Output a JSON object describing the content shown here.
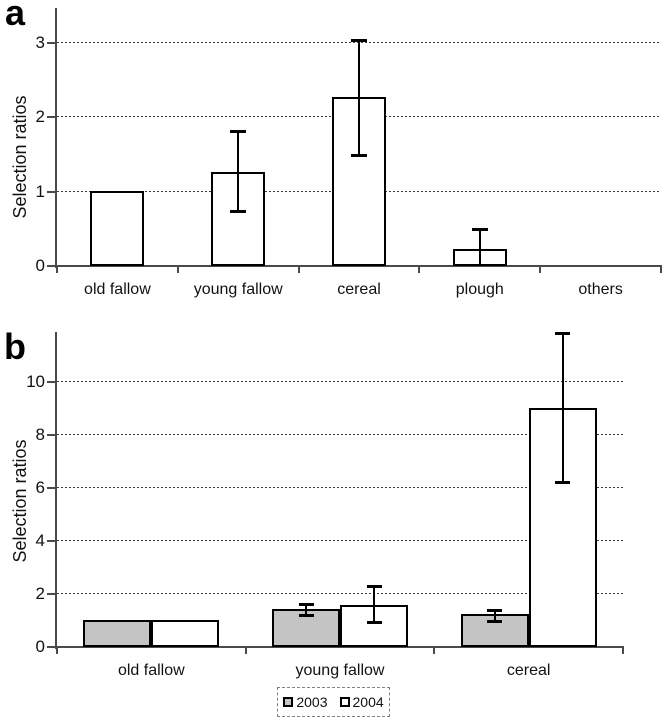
{
  "figure_title": "",
  "chart_data": [
    {
      "id": "a",
      "panel_label": "a",
      "type": "bar",
      "ylabel": "Selection ratios",
      "xlabel": "",
      "ylim": [
        0,
        3.45
      ],
      "yticks": [
        0,
        1,
        2,
        3
      ],
      "grid": "horizontal-dashed",
      "legend_position": "none",
      "categories": [
        "old fallow",
        "young fallow",
        "cereal",
        "plough",
        "others"
      ],
      "series": [
        {
          "name": "selection ratio",
          "fill": "#ffffff",
          "values": [
            1.0,
            1.25,
            2.25,
            0.22,
            0
          ],
          "error_low": [
            null,
            0.73,
            1.48,
            0,
            null
          ],
          "error_high": [
            null,
            1.81,
            3.03,
            0.49,
            null
          ]
        }
      ]
    },
    {
      "id": "b",
      "panel_label": "b",
      "type": "bar",
      "ylabel": "Selection ratios",
      "xlabel": "",
      "ylim": [
        0,
        11.9
      ],
      "yticks": [
        0,
        2,
        4,
        6,
        8,
        10
      ],
      "grid": "horizontal-dashed",
      "legend_position": "bottom",
      "categories": [
        "old fallow",
        "young fallow",
        "cereal"
      ],
      "series": [
        {
          "name": "2003",
          "fill": "#c4c4c4",
          "values": [
            1.0,
            1.38,
            1.2
          ],
          "error_low": [
            null,
            1.17,
            0.95
          ],
          "error_high": [
            null,
            1.64,
            1.4
          ]
        },
        {
          "name": "2004",
          "fill": "#ffffff",
          "values": [
            1.0,
            1.55,
            9.0
          ],
          "error_low": [
            null,
            0.9,
            6.2
          ],
          "error_high": [
            null,
            2.3,
            11.85
          ]
        }
      ]
    }
  ],
  "legend": {
    "items": [
      {
        "label": "2003",
        "fill": "#c4c4c4"
      },
      {
        "label": "2004",
        "fill": "#ffffff"
      }
    ]
  },
  "colors": {
    "bar_border": "#000000",
    "axis": "#4a4a4a",
    "gridline": "#3c3c3c",
    "gray_fill": "#c4c4c4",
    "white_fill": "#ffffff",
    "background": "#ffffff"
  }
}
